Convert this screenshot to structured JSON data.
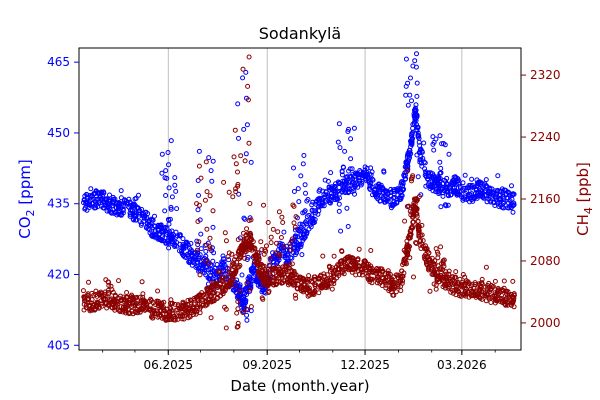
{
  "chart_data": {
    "type": "scatter",
    "title": "Sodankylä",
    "xlabel": "Date (month.year)",
    "ylabel_left": {
      "main": "CO",
      "sub": "2",
      "rest": " [ppm]"
    },
    "ylabel_right": {
      "main": "CH",
      "sub": "4",
      "rest": " [ppb]"
    },
    "x_range": [
      "2025-03-10",
      "2026-04-25"
    ],
    "xticks": [
      {
        "date": "2025-06-01",
        "label": "06.2025"
      },
      {
        "date": "2025-09-01",
        "label": "09.2025"
      },
      {
        "date": "2025-12-01",
        "label": "12.2025"
      },
      {
        "date": "2026-03-01",
        "label": "03.2026"
      }
    ],
    "grid_x": true,
    "ylim_left": [
      404,
      468
    ],
    "ylim_right": [
      1965,
      2355
    ],
    "yticks_left": [
      405,
      420,
      435,
      450,
      465
    ],
    "yticks_right": [
      2000,
      2080,
      2160,
      2240,
      2320
    ],
    "colors": {
      "co2": "#0000ff",
      "ch4": "#8b0000",
      "grid": "#b0b0b0"
    },
    "series": [
      {
        "axis": "left",
        "color": "#0000ff",
        "x": [
          "2025-03-14",
          "2025-03-22",
          "2025-03-30",
          "2025-04-07",
          "2025-04-15",
          "2025-04-23",
          "2025-05-01",
          "2025-05-09",
          "2025-05-17",
          "2025-05-25",
          "2025-06-02",
          "2025-06-10",
          "2025-06-18",
          "2025-06-26",
          "2025-07-04",
          "2025-07-12",
          "2025-07-20",
          "2025-07-28",
          "2025-08-05",
          "2025-08-10",
          "2025-08-15",
          "2025-08-20",
          "2025-08-25",
          "2025-08-30",
          "2025-09-05",
          "2025-09-13",
          "2025-09-21",
          "2025-09-29",
          "2025-10-07",
          "2025-10-15",
          "2025-10-23",
          "2025-10-31",
          "2025-11-08",
          "2025-11-16",
          "2025-11-24",
          "2025-12-02",
          "2025-12-10",
          "2025-12-18",
          "2025-12-26",
          "2026-01-03",
          "2026-01-09",
          "2026-01-13",
          "2026-01-17",
          "2026-01-21",
          "2026-01-29",
          "2026-02-06",
          "2026-02-14",
          "2026-02-22",
          "2026-03-02",
          "2026-03-10",
          "2026-03-18",
          "2026-03-26",
          "2026-04-03",
          "2026-04-11",
          "2026-04-19"
        ],
        "y": [
          435,
          436,
          436,
          435,
          434,
          435,
          433,
          432,
          430,
          429,
          428,
          427,
          425,
          423,
          422,
          420,
          421,
          419,
          416,
          414,
          418,
          421,
          419,
          417,
          422,
          425,
          424,
          427,
          430,
          433,
          436,
          437,
          438,
          439,
          440,
          441,
          438,
          437,
          436,
          437,
          443,
          448,
          455,
          446,
          440,
          439,
          438,
          439,
          438,
          437,
          438,
          437,
          436,
          436,
          436
        ]
      },
      {
        "axis": "right",
        "color": "#8b0000",
        "x": [
          "2025-03-14",
          "2025-03-22",
          "2025-03-30",
          "2025-04-07",
          "2025-04-15",
          "2025-04-23",
          "2025-05-01",
          "2025-05-09",
          "2025-05-17",
          "2025-05-25",
          "2025-06-02",
          "2025-06-10",
          "2025-06-18",
          "2025-06-26",
          "2025-07-04",
          "2025-07-12",
          "2025-07-20",
          "2025-07-28",
          "2025-08-05",
          "2025-08-10",
          "2025-08-15",
          "2025-08-20",
          "2025-08-25",
          "2025-08-30",
          "2025-09-05",
          "2025-09-13",
          "2025-09-21",
          "2025-09-29",
          "2025-10-07",
          "2025-10-15",
          "2025-10-23",
          "2025-10-31",
          "2025-11-08",
          "2025-11-16",
          "2025-11-24",
          "2025-12-02",
          "2025-12-10",
          "2025-12-18",
          "2025-12-26",
          "2026-01-03",
          "2026-01-09",
          "2026-01-13",
          "2026-01-17",
          "2026-01-21",
          "2026-01-29",
          "2026-02-06",
          "2026-02-14",
          "2026-02-22",
          "2026-03-02",
          "2026-03-10",
          "2026-03-18",
          "2026-03-26",
          "2026-04-03",
          "2026-04-11",
          "2026-04-19"
        ],
        "y": [
          2025,
          2027,
          2028,
          2030,
          2027,
          2024,
          2022,
          2025,
          2018,
          2016,
          2014,
          2015,
          2017,
          2022,
          2030,
          2038,
          2045,
          2060,
          2080,
          2095,
          2110,
          2090,
          2070,
          2058,
          2060,
          2062,
          2063,
          2055,
          2045,
          2048,
          2052,
          2060,
          2070,
          2075,
          2072,
          2068,
          2060,
          2058,
          2050,
          2052,
          2090,
          2120,
          2160,
          2110,
          2080,
          2065,
          2055,
          2048,
          2045,
          2040,
          2042,
          2038,
          2036,
          2034,
          2032
        ]
      }
    ],
    "spikes_left": [
      {
        "x": "2025-06-02",
        "ymin": 430,
        "ymax": 449
      },
      {
        "x": "2025-07-05",
        "ymin": 416,
        "ymax": 448
      },
      {
        "x": "2025-08-12",
        "ymin": 407,
        "ymax": 464
      },
      {
        "x": "2025-10-01",
        "ymin": 424,
        "ymax": 446
      },
      {
        "x": "2025-11-14",
        "ymin": 428,
        "ymax": 452
      },
      {
        "x": "2026-01-15",
        "ymin": 432,
        "ymax": 469
      },
      {
        "x": "2026-02-10",
        "ymin": 434,
        "ymax": 450
      }
    ],
    "spikes_right": [
      {
        "x": "2025-07-05",
        "ymin": 2000,
        "ymax": 2215
      },
      {
        "x": "2025-07-30",
        "ymin": 1993,
        "ymax": 2250
      },
      {
        "x": "2025-08-10",
        "ymin": 2010,
        "ymax": 2345
      },
      {
        "x": "2025-09-03",
        "ymin": 2020,
        "ymax": 2170
      },
      {
        "x": "2025-09-20",
        "ymin": 2030,
        "ymax": 2155
      },
      {
        "x": "2026-01-14",
        "ymin": 2050,
        "ymax": 2210
      },
      {
        "x": "2026-02-05",
        "ymin": 2040,
        "ymax": 2100
      }
    ]
  }
}
